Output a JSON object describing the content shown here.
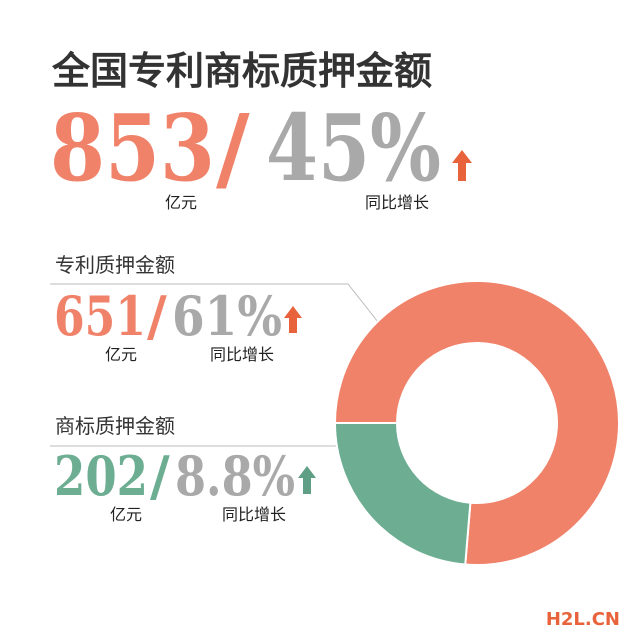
{
  "title": "全国专利商标质押金额",
  "separator": "/",
  "unit": "亿元",
  "growth_label": "同比增长",
  "total": {
    "value": 853,
    "growth": "45%"
  },
  "chart_data": {
    "type": "donut",
    "categories": [
      "专利质押金额",
      "商标质押金额"
    ],
    "values": [
      651,
      202
    ],
    "growth": [
      "61%",
      "8.8%"
    ],
    "colors": [
      "#f0826a",
      "#6dae93"
    ]
  },
  "watermark": "H2L.CN"
}
